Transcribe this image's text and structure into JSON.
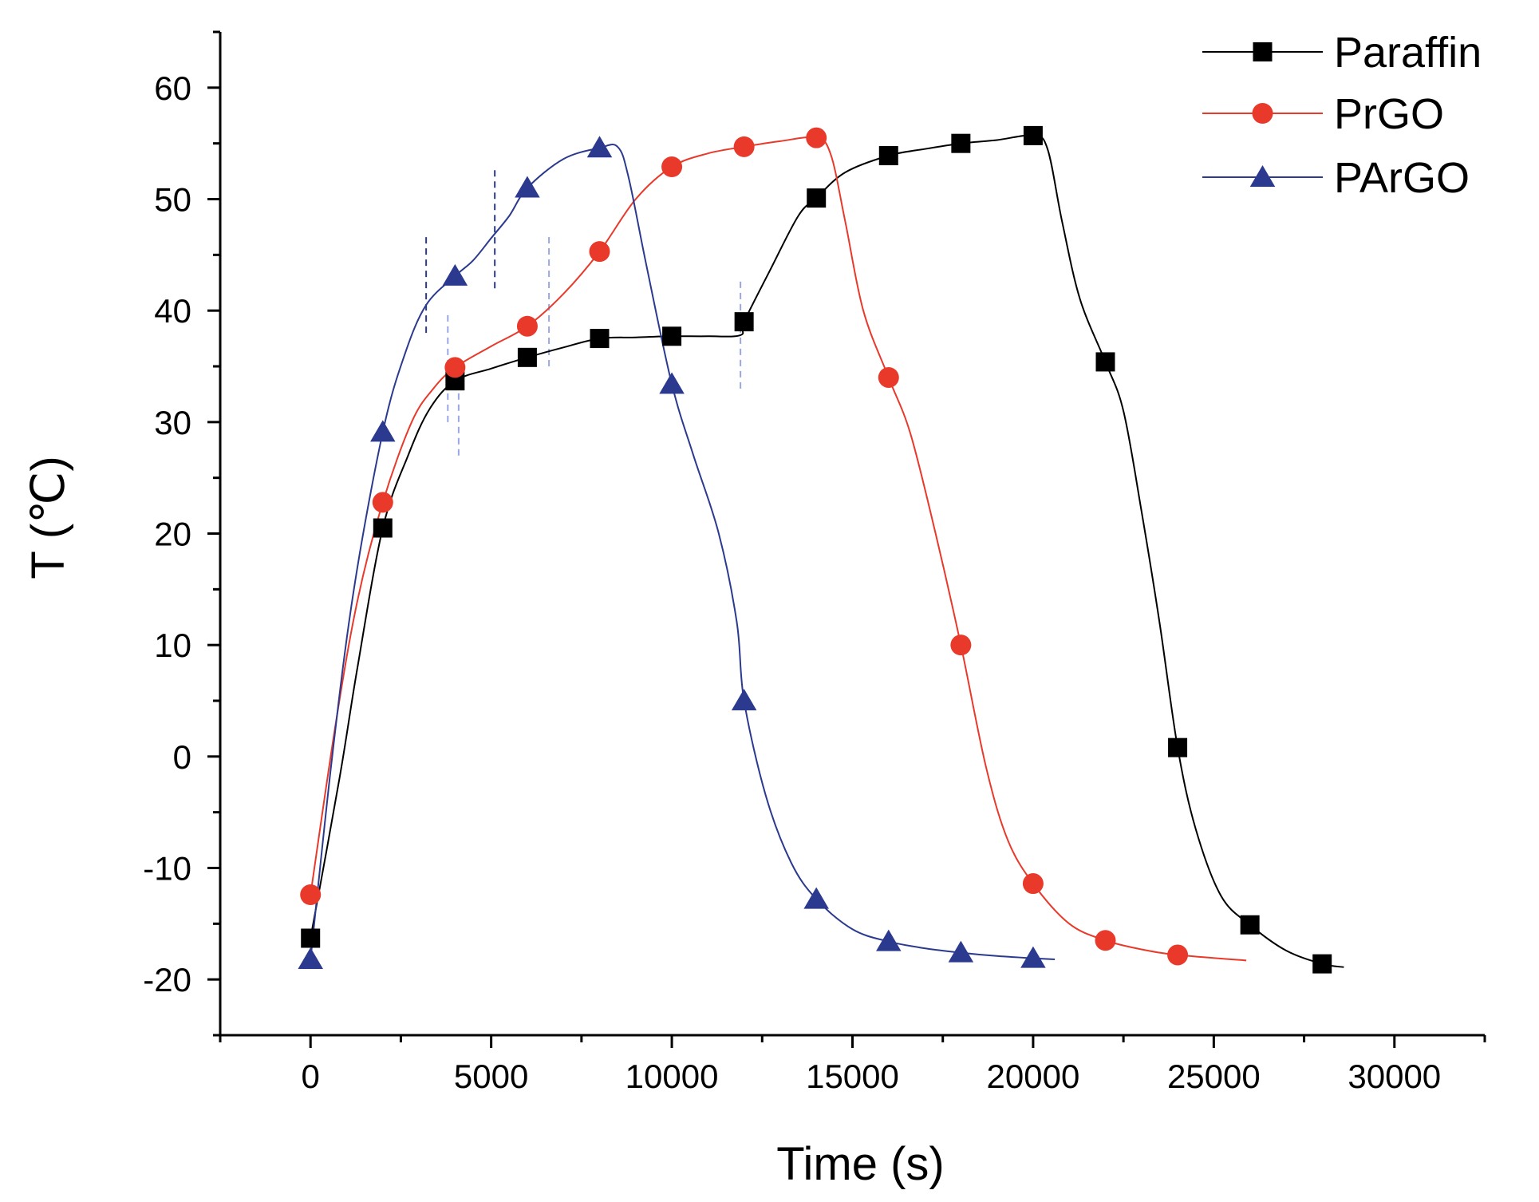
{
  "chart_data": {
    "type": "line",
    "title": "",
    "xlabel": "Time (s)",
    "ylabel": "T (℃)",
    "xlim": [
      -2500,
      32500
    ],
    "ylim": [
      -25,
      65
    ],
    "xticks": [
      0,
      5000,
      10000,
      15000,
      20000,
      25000,
      30000
    ],
    "xtick_labels": [
      "0",
      "5000",
      "10000",
      "15000",
      "20000",
      "25000",
      "30000"
    ],
    "yticks": [
      -20,
      -10,
      0,
      10,
      20,
      30,
      40,
      50,
      60
    ],
    "ytick_labels": [
      "-20",
      "-10",
      "0",
      "10",
      "20",
      "30",
      "40",
      "50",
      "60"
    ],
    "grid": false,
    "legend_position": "top-right",
    "series": [
      {
        "name": "Paraffin",
        "color": "#000000",
        "marker": "square",
        "points": [
          [
            0,
            -16.3
          ],
          [
            2000,
            20.5
          ],
          [
            4000,
            33.7
          ],
          [
            6000,
            35.8
          ],
          [
            8000,
            37.5
          ],
          [
            10000,
            37.7
          ],
          [
            12000,
            39.0
          ],
          [
            14000,
            50.1
          ],
          [
            16000,
            53.9
          ],
          [
            18000,
            55.0
          ],
          [
            20000,
            55.7
          ],
          [
            22000,
            35.4
          ],
          [
            24000,
            0.8
          ],
          [
            26000,
            -15.1
          ],
          [
            28000,
            -18.6
          ]
        ],
        "line": [
          [
            0,
            -16.3
          ],
          [
            800,
            -2
          ],
          [
            1300,
            8
          ],
          [
            2000,
            20.5
          ],
          [
            2700,
            27
          ],
          [
            3300,
            31.2
          ],
          [
            4000,
            33.7
          ],
          [
            5000,
            34.8
          ],
          [
            6000,
            35.8
          ],
          [
            7000,
            36.7
          ],
          [
            8000,
            37.5
          ],
          [
            9000,
            37.6
          ],
          [
            10000,
            37.7
          ],
          [
            11000,
            37.7
          ],
          [
            11900,
            37.8
          ],
          [
            12000,
            39.0
          ],
          [
            12700,
            43.5
          ],
          [
            13500,
            48.5
          ],
          [
            14000,
            50.1
          ],
          [
            14800,
            52.4
          ],
          [
            16000,
            53.9
          ],
          [
            17000,
            54.5
          ],
          [
            18000,
            55.0
          ],
          [
            19000,
            55.3
          ],
          [
            20000,
            55.7
          ],
          [
            20400,
            54.5
          ],
          [
            20800,
            48
          ],
          [
            21300,
            41
          ],
          [
            22000,
            35.4
          ],
          [
            22500,
            31
          ],
          [
            23000,
            22
          ],
          [
            23500,
            12
          ],
          [
            24000,
            0.8
          ],
          [
            24500,
            -6.5
          ],
          [
            25200,
            -12.5
          ],
          [
            26000,
            -15.1
          ],
          [
            27000,
            -17.4
          ],
          [
            28000,
            -18.6
          ],
          [
            28600,
            -18.9
          ]
        ]
      },
      {
        "name": "PrGO",
        "color": "#e8392b",
        "marker": "circle",
        "points": [
          [
            0,
            -12.4
          ],
          [
            2000,
            22.8
          ],
          [
            4000,
            34.9
          ],
          [
            6000,
            38.6
          ],
          [
            8000,
            45.3
          ],
          [
            10000,
            52.9
          ],
          [
            12000,
            54.7
          ],
          [
            14000,
            55.5
          ],
          [
            16000,
            34.0
          ],
          [
            18000,
            10.0
          ],
          [
            20000,
            -11.4
          ],
          [
            22000,
            -16.5
          ],
          [
            24000,
            -17.8
          ]
        ],
        "line": [
          [
            0,
            -12.4
          ],
          [
            700,
            3
          ],
          [
            1300,
            14
          ],
          [
            2000,
            22.8
          ],
          [
            2800,
            30
          ],
          [
            3400,
            33
          ],
          [
            4000,
            34.9
          ],
          [
            5000,
            36.8
          ],
          [
            6000,
            38.6
          ],
          [
            7000,
            41.5
          ],
          [
            8000,
            45.3
          ],
          [
            9000,
            50
          ],
          [
            10000,
            52.9
          ],
          [
            11000,
            54.1
          ],
          [
            12000,
            54.7
          ],
          [
            13000,
            55.2
          ],
          [
            14000,
            55.5
          ],
          [
            14400,
            54
          ],
          [
            14800,
            48
          ],
          [
            15300,
            40
          ],
          [
            16000,
            34.0
          ],
          [
            16600,
            29
          ],
          [
            17300,
            20
          ],
          [
            18000,
            10.0
          ],
          [
            18700,
            -1
          ],
          [
            19300,
            -7.5
          ],
          [
            20000,
            -11.4
          ],
          [
            21000,
            -15
          ],
          [
            22000,
            -16.5
          ],
          [
            23000,
            -17.3
          ],
          [
            24000,
            -17.8
          ],
          [
            25900,
            -18.3
          ]
        ]
      },
      {
        "name": "PArGO",
        "color": "#2b3a8f",
        "marker": "triangle",
        "points": [
          [
            0,
            -18.2
          ],
          [
            2000,
            29.1
          ],
          [
            4000,
            43.1
          ],
          [
            6000,
            51.0
          ],
          [
            8000,
            54.6
          ],
          [
            10000,
            33.4
          ],
          [
            12000,
            5.0
          ],
          [
            14000,
            -12.8
          ],
          [
            16000,
            -16.6
          ],
          [
            18000,
            -17.6
          ],
          [
            20000,
            -18.1
          ]
        ],
        "line": [
          [
            0,
            -18.2
          ],
          [
            600,
            0
          ],
          [
            1200,
            15
          ],
          [
            2000,
            29.1
          ],
          [
            2600,
            36
          ],
          [
            3200,
            40.5
          ],
          [
            4000,
            43.1
          ],
          [
            4500,
            44.5
          ],
          [
            5000,
            46.5
          ],
          [
            5500,
            48.5
          ],
          [
            6000,
            51.0
          ],
          [
            7000,
            53.6
          ],
          [
            8000,
            54.6
          ],
          [
            8500,
            54.7
          ],
          [
            8800,
            52
          ],
          [
            9300,
            44
          ],
          [
            10000,
            33.4
          ],
          [
            10600,
            27
          ],
          [
            11300,
            20
          ],
          [
            11800,
            12
          ],
          [
            12000,
            5.0
          ],
          [
            12600,
            -3.5
          ],
          [
            13300,
            -9.5
          ],
          [
            14000,
            -12.8
          ],
          [
            15000,
            -15.5
          ],
          [
            16000,
            -16.6
          ],
          [
            17000,
            -17.2
          ],
          [
            18000,
            -17.6
          ],
          [
            19000,
            -17.9
          ],
          [
            20000,
            -18.1
          ],
          [
            20600,
            -18.2
          ]
        ]
      }
    ],
    "guide_lines": [
      {
        "x": 3200,
        "y_range": [
          38,
          47
        ],
        "color": "#2b3a8f"
      },
      {
        "x": 5100,
        "y_range": [
          42,
          53
        ],
        "color": "#2b3a8f"
      },
      {
        "x": 3800,
        "y_range": [
          30,
          40
        ],
        "color": "#9aa6e6"
      },
      {
        "x": 4100,
        "y_range": [
          27,
          35
        ],
        "color": "#9aa6e6"
      },
      {
        "x": 6600,
        "y_range": [
          35,
          47
        ],
        "color": "#9aa6e6"
      },
      {
        "x": 11900,
        "y_range": [
          33,
          43
        ],
        "color": "#9aa6e6"
      }
    ]
  }
}
